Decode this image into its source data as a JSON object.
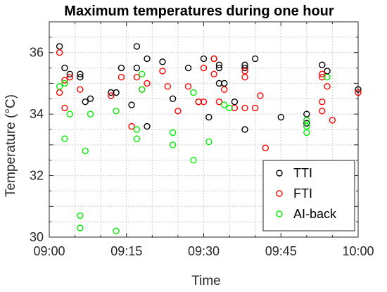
{
  "chart_data": {
    "type": "scatter",
    "title": "Maximum temperatures during one hour",
    "xlabel": "Time",
    "ylabel": "Temperature (°C)",
    "xlim": [
      "09:00",
      "10:00"
    ],
    "ylim": [
      30,
      37
    ],
    "xticks": [
      "09:00",
      "09:15",
      "09:30",
      "09:45",
      "10:00"
    ],
    "yticks": [
      30,
      32,
      34,
      36
    ],
    "grid": true,
    "legend_position": "bottom-right",
    "series": [
      {
        "name": "TTI",
        "color": "#000000",
        "points": [
          {
            "x": "09:02",
            "y": 36.2
          },
          {
            "x": "09:03",
            "y": 35.5
          },
          {
            "x": "09:04",
            "y": 35.3
          },
          {
            "x": "09:06",
            "y": 35.3
          },
          {
            "x": "09:06",
            "y": 35.2
          },
          {
            "x": "09:07",
            "y": 34.4
          },
          {
            "x": "09:08",
            "y": 34.5
          },
          {
            "x": "09:12",
            "y": 34.7
          },
          {
            "x": "09:13",
            "y": 34.7
          },
          {
            "x": "09:14",
            "y": 35.5
          },
          {
            "x": "09:16",
            "y": 34.3
          },
          {
            "x": "09:17",
            "y": 36.2
          },
          {
            "x": "09:17",
            "y": 35.5
          },
          {
            "x": "09:19",
            "y": 35.8
          },
          {
            "x": "09:19",
            "y": 33.6
          },
          {
            "x": "09:22",
            "y": 35.7
          },
          {
            "x": "09:24",
            "y": 34.5
          },
          {
            "x": "09:27",
            "y": 35.5
          },
          {
            "x": "09:29",
            "y": 34.4
          },
          {
            "x": "09:30",
            "y": 35.8
          },
          {
            "x": "09:31",
            "y": 33.9
          },
          {
            "x": "09:32",
            "y": 35.8
          },
          {
            "x": "09:33",
            "y": 35.6
          },
          {
            "x": "09:33",
            "y": 35.5
          },
          {
            "x": "09:33",
            "y": 35.0
          },
          {
            "x": "09:34",
            "y": 35.0
          },
          {
            "x": "09:36",
            "y": 34.4
          },
          {
            "x": "09:38",
            "y": 35.6
          },
          {
            "x": "09:38",
            "y": 35.5
          },
          {
            "x": "09:38",
            "y": 33.5
          },
          {
            "x": "09:40",
            "y": 35.8
          },
          {
            "x": "09:45",
            "y": 33.9
          },
          {
            "x": "09:50",
            "y": 34.0
          },
          {
            "x": "09:50",
            "y": 33.7
          },
          {
            "x": "09:53",
            "y": 35.6
          },
          {
            "x": "09:54",
            "y": 35.4
          },
          {
            "x": "10:00",
            "y": 34.8
          }
        ]
      },
      {
        "name": "FTI",
        "color": "#ff0000",
        "points": [
          {
            "x": "09:02",
            "y": 36.0
          },
          {
            "x": "09:02",
            "y": 34.7
          },
          {
            "x": "09:03",
            "y": 35.1
          },
          {
            "x": "09:03",
            "y": 34.2
          },
          {
            "x": "09:04",
            "y": 35.2
          },
          {
            "x": "09:06",
            "y": 34.8
          },
          {
            "x": "09:12",
            "y": 34.6
          },
          {
            "x": "09:14",
            "y": 35.2
          },
          {
            "x": "09:16",
            "y": 33.6
          },
          {
            "x": "09:17",
            "y": 35.2
          },
          {
            "x": "09:18",
            "y": 34.8
          },
          {
            "x": "09:19",
            "y": 35.0
          },
          {
            "x": "09:22",
            "y": 35.4
          },
          {
            "x": "09:23",
            "y": 34.9
          },
          {
            "x": "09:25",
            "y": 34.1
          },
          {
            "x": "09:27",
            "y": 34.9
          },
          {
            "x": "09:29",
            "y": 34.4
          },
          {
            "x": "09:30",
            "y": 35.5
          },
          {
            "x": "09:30",
            "y": 34.4
          },
          {
            "x": "09:32",
            "y": 35.8
          },
          {
            "x": "09:32",
            "y": 35.3
          },
          {
            "x": "09:33",
            "y": 34.4
          },
          {
            "x": "09:34",
            "y": 34.8
          },
          {
            "x": "09:36",
            "y": 34.2
          },
          {
            "x": "09:38",
            "y": 35.4
          },
          {
            "x": "09:38",
            "y": 35.2
          },
          {
            "x": "09:38",
            "y": 34.2
          },
          {
            "x": "09:40",
            "y": 34.2
          },
          {
            "x": "09:41",
            "y": 34.6
          },
          {
            "x": "09:42",
            "y": 32.9
          },
          {
            "x": "09:53",
            "y": 35.3
          },
          {
            "x": "09:53",
            "y": 35.2
          },
          {
            "x": "09:53",
            "y": 34.4
          },
          {
            "x": "09:53",
            "y": 34.1
          },
          {
            "x": "09:54",
            "y": 34.9
          },
          {
            "x": "09:55",
            "y": 33.8
          },
          {
            "x": "10:00",
            "y": 34.7
          }
        ]
      },
      {
        "name": "AI-back",
        "color": "#00ee00",
        "points": [
          {
            "x": "09:02",
            "y": 34.9
          },
          {
            "x": "09:03",
            "y": 35.0
          },
          {
            "x": "09:03",
            "y": 33.2
          },
          {
            "x": "09:04",
            "y": 34.0
          },
          {
            "x": "09:06",
            "y": 30.7
          },
          {
            "x": "09:06",
            "y": 30.3
          },
          {
            "x": "09:07",
            "y": 32.8
          },
          {
            "x": "09:08",
            "y": 34.0
          },
          {
            "x": "09:13",
            "y": 34.1
          },
          {
            "x": "09:13",
            "y": 30.2
          },
          {
            "x": "09:17",
            "y": 33.5
          },
          {
            "x": "09:17",
            "y": 33.2
          },
          {
            "x": "09:18",
            "y": 35.3
          },
          {
            "x": "09:18",
            "y": 34.8
          },
          {
            "x": "09:24",
            "y": 33.4
          },
          {
            "x": "09:24",
            "y": 33.0
          },
          {
            "x": "09:28",
            "y": 34.7
          },
          {
            "x": "09:28",
            "y": 32.5
          },
          {
            "x": "09:31",
            "y": 33.1
          },
          {
            "x": "09:34",
            "y": 34.3
          },
          {
            "x": "09:35",
            "y": 34.2
          },
          {
            "x": "09:50",
            "y": 33.8
          },
          {
            "x": "09:50",
            "y": 33.6
          },
          {
            "x": "09:50",
            "y": 33.4
          },
          {
            "x": "09:54",
            "y": 35.2
          }
        ]
      }
    ]
  }
}
